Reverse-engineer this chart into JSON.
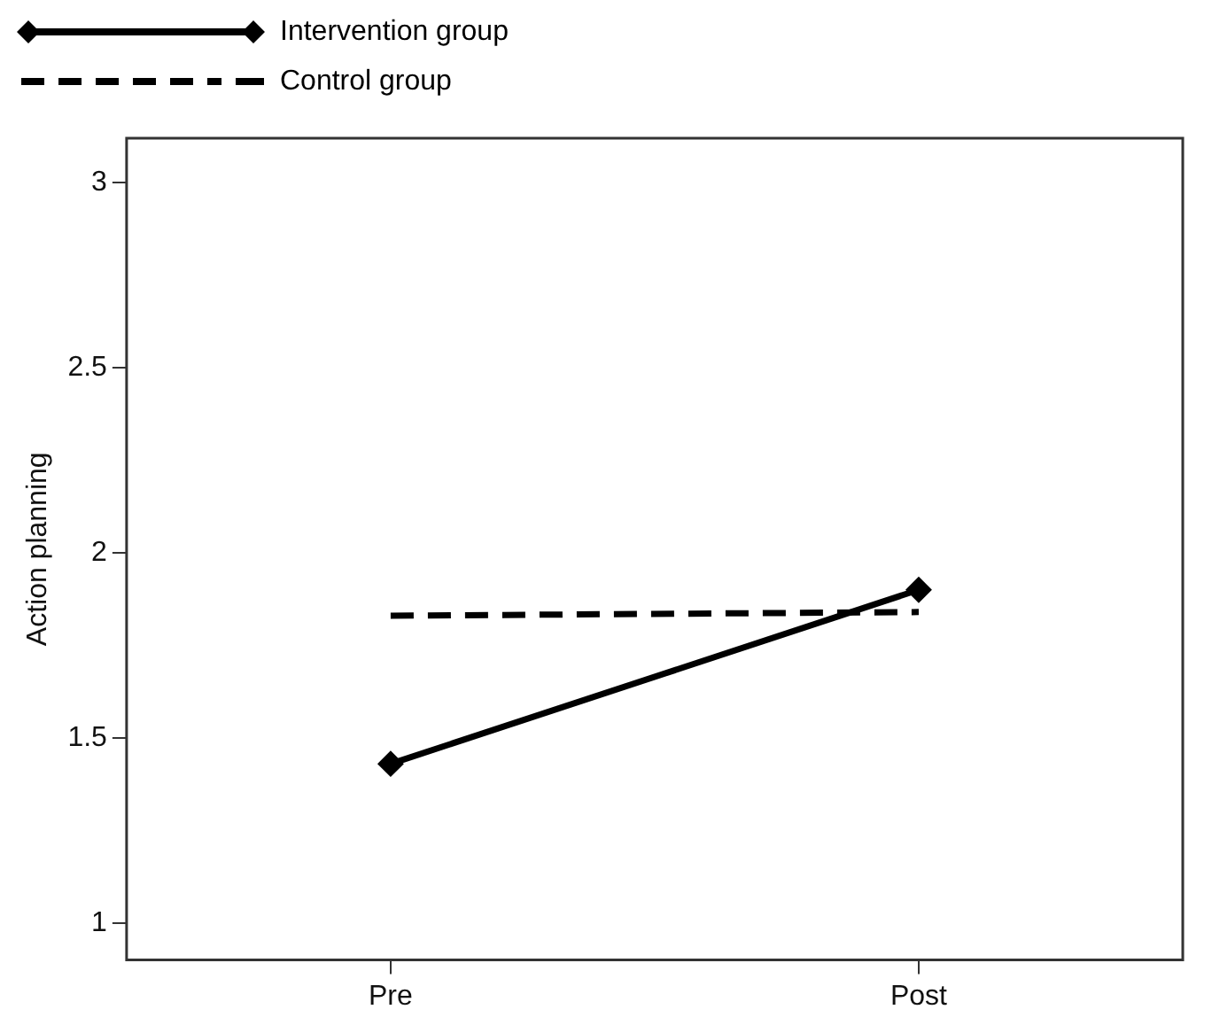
{
  "chart_data": {
    "type": "line",
    "ylabel": "Action planning",
    "categories": [
      "Pre",
      "Post"
    ],
    "series": [
      {
        "name": "Intervention group",
        "color": "#000000",
        "values": [
          1.43,
          1.9
        ],
        "marker": "diamond",
        "line_style": "solid"
      },
      {
        "name": "Control group",
        "color": "#000000",
        "values": [
          1.83,
          1.84
        ],
        "marker": "none",
        "line_style": "dashed"
      }
    ],
    "ylim": [
      0.9,
      3.12
    ],
    "yticks": [
      1,
      1.5,
      2,
      2.5,
      3
    ],
    "grid": false,
    "legend": "top left"
  }
}
